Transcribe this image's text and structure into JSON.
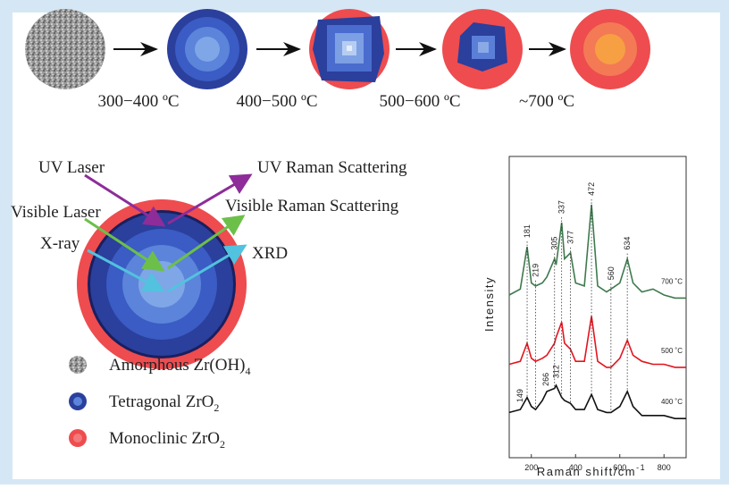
{
  "process": {
    "temperatures": [
      "300−400 ºC",
      "400−500 ºC",
      "500−600 ºC",
      "~700 ºC"
    ]
  },
  "diagram": {
    "labels": {
      "uv_laser": "UV Laser",
      "uv_raman": "UV Raman Scattering",
      "visible_laser": "Visible Laser",
      "visible_raman": "Visible Raman Scattering",
      "xray": "X-ray",
      "xrd": "XRD"
    }
  },
  "legend": [
    {
      "text": "Amorphous Zr(OH)",
      "sub": "4"
    },
    {
      "text": "Tetragonal ZrO",
      "sub": "2"
    },
    {
      "text": "Monoclinic ZrO",
      "sub": "2"
    }
  ],
  "chart_data": {
    "type": "line",
    "xlabel": {
      "text": "Raman shift/cm",
      "sup": "-1"
    },
    "ylabel": "Intensity",
    "x": [
      100,
      150,
      181,
      200,
      219,
      250,
      270,
      305,
      312,
      337,
      350,
      377,
      400,
      440,
      472,
      500,
      540,
      560,
      600,
      634,
      660,
      700,
      750,
      800,
      850,
      900
    ],
    "xlim": [
      100,
      900
    ],
    "xticks": [
      200,
      400,
      600,
      800
    ],
    "ylim": [
      0,
      100
    ],
    "series": [
      {
        "name": "700 ˚C",
        "color": "#3e7a4e",
        "values": [
          54,
          56,
          70,
          58,
          57,
          58,
          60,
          66,
          64,
          78,
          66,
          68,
          58,
          57,
          84,
          57,
          55,
          56,
          58,
          66,
          58,
          55,
          56,
          54,
          53,
          53
        ]
      },
      {
        "name": "500 ˚C",
        "color": "#e3141e",
        "values": [
          31,
          32,
          38,
          33,
          32,
          33,
          34,
          38,
          40,
          45,
          38,
          36,
          32,
          32,
          47,
          32,
          30,
          30,
          33,
          39,
          34,
          32,
          31,
          31,
          30,
          30
        ]
      },
      {
        "name": "400 ˚C",
        "color": "#111111",
        "values": [
          15,
          16,
          20,
          17,
          16,
          19,
          22,
          23,
          24,
          20,
          19,
          18,
          16,
          16,
          21,
          16,
          15,
          15,
          17,
          22,
          17,
          14,
          14,
          14,
          13,
          13
        ]
      }
    ],
    "peak_labels_top": [
      181,
      219,
      305,
      337,
      377,
      472,
      560,
      634
    ],
    "peak_labels_bottom": [
      149,
      266,
      312
    ]
  }
}
